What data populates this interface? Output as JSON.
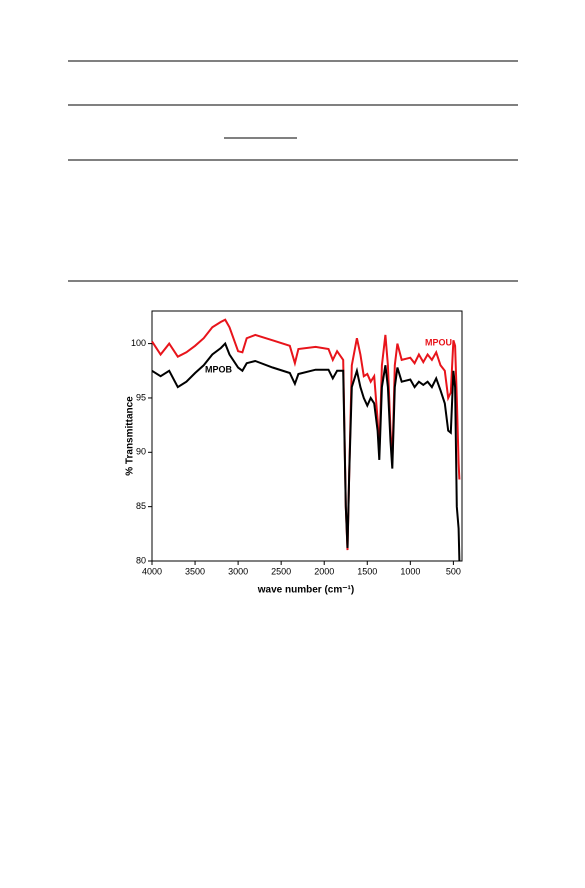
{
  "chart_data": {
    "type": "line",
    "xlabel": "wave number (cm⁻¹)",
    "ylabel": "% Transmittance",
    "x": [
      4000,
      3900,
      3800,
      3700,
      3600,
      3500,
      3400,
      3300,
      3200,
      3150,
      3100,
      3000,
      2950,
      2900,
      2800,
      2600,
      2400,
      2340,
      2300,
      2100,
      1950,
      1900,
      1850,
      1780,
      1750,
      1730,
      1710,
      1680,
      1620,
      1580,
      1540,
      1500,
      1460,
      1420,
      1380,
      1360,
      1330,
      1290,
      1260,
      1230,
      1210,
      1180,
      1150,
      1100,
      1000,
      950,
      900,
      850,
      800,
      750,
      700,
      650,
      600,
      560,
      530,
      500,
      480,
      460,
      440,
      430
    ],
    "series": [
      {
        "name": "MPOU",
        "color": "#e8141b",
        "values": [
          100.2,
          99,
          100,
          98.8,
          99.2,
          99.8,
          100.5,
          101.5,
          102,
          102.2,
          101.5,
          99.3,
          99.2,
          100.5,
          100.8,
          100.3,
          99.8,
          98.2,
          99.5,
          99.7,
          99.5,
          98.5,
          99.3,
          98.5,
          85,
          81,
          88,
          98,
          100.5,
          99,
          97,
          97.2,
          96.5,
          97,
          93,
          90,
          98,
          100.8,
          98,
          92,
          89,
          98,
          100,
          98.5,
          98.7,
          98.2,
          99,
          98.3,
          99,
          98.5,
          99.2,
          98,
          97.5,
          95,
          95.5,
          100.3,
          99.8,
          95,
          89,
          87.5
        ]
      },
      {
        "name": "MPOB",
        "color": "#000000",
        "values": [
          97.5,
          97,
          97.5,
          96,
          96.5,
          97.3,
          98,
          99,
          99.6,
          100,
          99,
          97.8,
          97.5,
          98.2,
          98.4,
          97.8,
          97.3,
          96.3,
          97.2,
          97.6,
          97.6,
          96.8,
          97.5,
          97.5,
          85,
          81.2,
          88,
          96,
          97.5,
          96,
          95,
          94.3,
          95,
          94.5,
          92,
          89.3,
          96,
          98,
          96,
          91,
          88.5,
          96,
          97.8,
          96.5,
          96.7,
          96,
          96.5,
          96.2,
          96.5,
          96,
          96.8,
          95.7,
          94.5,
          92,
          91.8,
          97.5,
          96,
          85,
          83,
          80
        ]
      }
    ],
    "xlim": [
      4000,
      400
    ],
    "xticks": [
      4000,
      3500,
      3000,
      2500,
      2000,
      1500,
      1000,
      500
    ],
    "ylim": [
      80,
      103
    ],
    "yticks": [
      80,
      85,
      90,
      95,
      100
    ]
  }
}
